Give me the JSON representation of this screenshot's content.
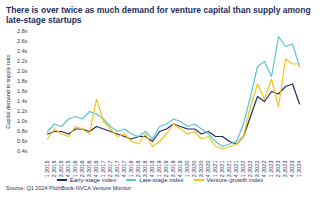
{
  "chart_data": {
    "type": "line",
    "title": "There is over twice as much demand for venture capital than supply among late-stage startups",
    "y_label": "Capital demand to supply ratio",
    "source": "Source: Q1 2024 PitchBook-NVCA Venture Monitor",
    "categories": [
      "Q1 2015",
      "Q2 2015",
      "Q3 2015",
      "Q4 2015",
      "Q1 2016",
      "Q2 2016",
      "Q3 2016",
      "Q4 2016",
      "Q1 2017",
      "Q2 2017",
      "Q3 2017",
      "Q4 2017",
      "Q1 2018",
      "Q2 2018",
      "Q3 2018",
      "Q4 2018",
      "Q1 2019",
      "Q2 2019",
      "Q3 2019",
      "Q4 2019",
      "Q1 2020",
      "Q2 2020",
      "Q3 2020",
      "Q4 2020",
      "Q1 2021",
      "Q2 2021",
      "Q3 2021",
      "Q4 2021",
      "Q1 2022",
      "Q2 2022",
      "Q3 2022",
      "Q4 2022",
      "Q1 2023",
      "Q2 2023",
      "Q3 2023",
      "Q4 2023",
      "Q1 2024"
    ],
    "series": [
      {
        "name": "Early-stage index",
        "color": "#1f2d5c",
        "values": [
          0.75,
          0.8,
          0.8,
          0.75,
          0.85,
          0.85,
          0.8,
          0.9,
          0.85,
          0.8,
          0.75,
          0.7,
          0.65,
          0.7,
          0.7,
          0.6,
          0.8,
          0.85,
          0.95,
          0.9,
          0.85,
          0.85,
          0.75,
          0.8,
          0.7,
          0.7,
          0.6,
          0.55,
          0.7,
          1.1,
          1.5,
          1.4,
          1.6,
          1.55,
          1.7,
          1.75,
          1.35
        ]
      },
      {
        "name": "Late-stage index",
        "color": "#5bc4cf",
        "values": [
          0.8,
          0.95,
          0.9,
          1.05,
          1.1,
          1.05,
          1.2,
          1.15,
          1.05,
          0.9,
          0.8,
          0.85,
          0.75,
          0.7,
          0.8,
          0.65,
          0.9,
          0.95,
          1.05,
          1.0,
          0.9,
          0.95,
          0.85,
          0.75,
          0.6,
          0.5,
          0.55,
          0.6,
          0.95,
          1.5,
          2.1,
          2.2,
          1.9,
          2.7,
          2.5,
          2.55,
          2.1
        ]
      },
      {
        "name": "Venture-growth index",
        "color": "#f2c318",
        "values": [
          0.65,
          0.85,
          0.75,
          0.7,
          0.9,
          0.85,
          0.75,
          1.45,
          1.0,
          0.85,
          0.7,
          0.75,
          0.6,
          0.55,
          0.75,
          0.5,
          0.6,
          0.75,
          0.95,
          0.85,
          0.75,
          0.8,
          0.65,
          0.7,
          0.5,
          0.45,
          0.5,
          0.55,
          0.7,
          1.3,
          1.75,
          1.45,
          1.85,
          1.3,
          2.25,
          2.15,
          2.15
        ]
      }
    ],
    "ylim": [
      0.4,
      2.8
    ],
    "yticks": [
      {
        "value": 0.4,
        "label": "0.4x"
      },
      {
        "value": 0.6,
        "label": "0.6x"
      },
      {
        "value": 0.8,
        "label": "0.8x"
      },
      {
        "value": 1.0,
        "label": "1.0x"
      },
      {
        "value": 1.2,
        "label": "1.2x"
      },
      {
        "value": 1.4,
        "label": "1.4x"
      },
      {
        "value": 1.6,
        "label": "1.6x"
      },
      {
        "value": 1.8,
        "label": "1.8x"
      },
      {
        "value": 2.0,
        "label": "2.0x"
      },
      {
        "value": 2.2,
        "label": "2.2x"
      },
      {
        "value": 2.4,
        "label": "2.4x"
      },
      {
        "value": 2.6,
        "label": "2.6x"
      },
      {
        "value": 2.8,
        "label": "2.8x"
      }
    ],
    "grid": false,
    "legend": "bottom"
  }
}
